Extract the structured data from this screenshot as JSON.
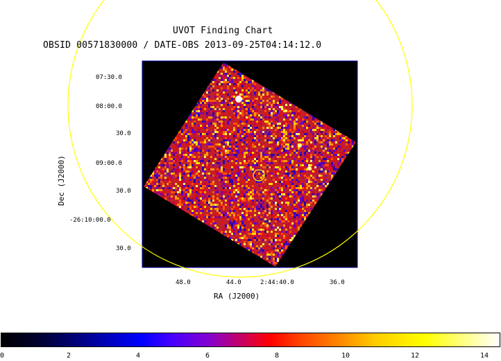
{
  "header": {
    "title": "UVOT Finding Chart",
    "subtitle": "OBSID 00571830000 / DATE-OBS 2013-09-25T04:14:12.0"
  },
  "axes": {
    "xlabel": "RA (J2000)",
    "ylabel": "Dec (J2000)",
    "x_ticks": [
      "48.0",
      "44.0",
      "2:44:40.0",
      "36.0"
    ],
    "y_ticks": [
      "07:30.0",
      "08:00.0",
      "30.0",
      "09:00.0",
      "30.0",
      "-26:10:00.0",
      "30.0"
    ]
  },
  "colorbar": {
    "ticks": [
      "0",
      "2",
      "4",
      "6",
      "8",
      "10",
      "12",
      "14"
    ],
    "range": [
      0,
      14
    ]
  },
  "overlays": {
    "large_circle_color": "#ffff00",
    "source_circle_color": "#ffff00"
  },
  "colors": {
    "background": "#ffffff",
    "image_bg": "#000000",
    "frame": "#0000aa"
  }
}
